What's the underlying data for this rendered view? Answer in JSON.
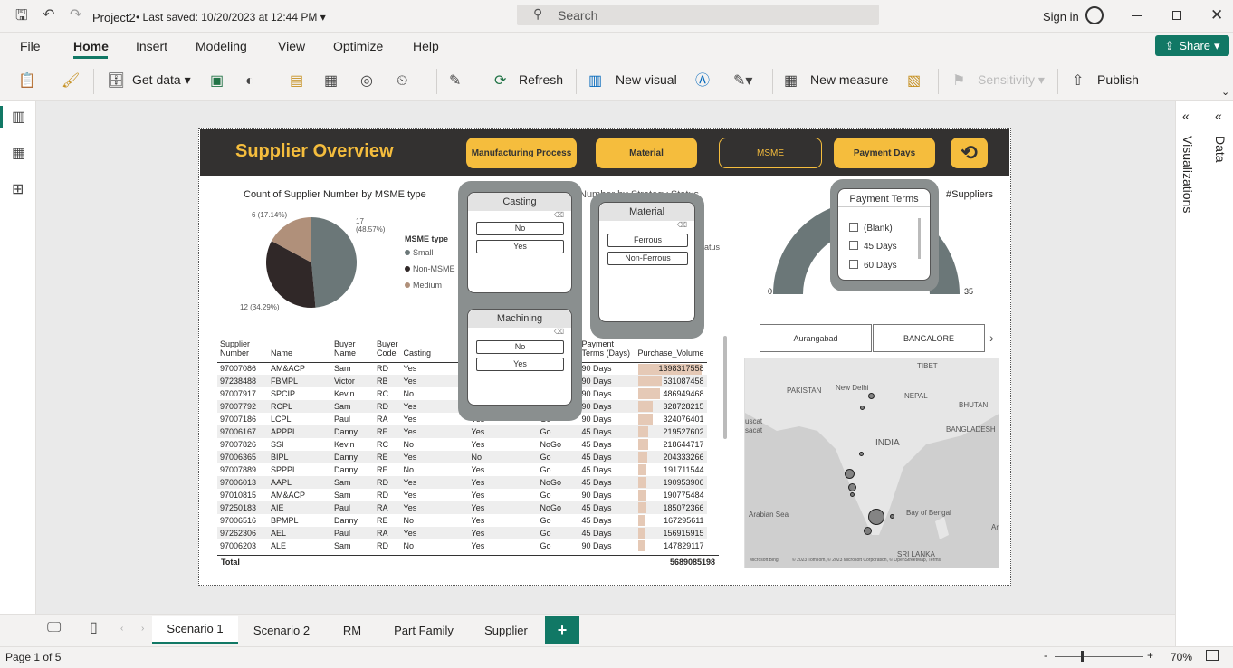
{
  "titlebar": {
    "project": "Project2",
    "saved": "Last saved: 10/20/2023 at 12:44 PM",
    "search_placeholder": "Search",
    "sign_in": "Sign in"
  },
  "menu": [
    "File",
    "Home",
    "Insert",
    "Modeling",
    "View",
    "Optimize",
    "Help"
  ],
  "share": "Share",
  "ribbon": {
    "get_data": "Get data",
    "refresh": "Refresh",
    "new_visual": "New visual",
    "new_measure": "New measure",
    "sensitivity": "Sensitivity",
    "publish": "Publish"
  },
  "report": {
    "title": "Supplier Overview",
    "buttons": [
      "Manufacturing Process",
      "Material",
      "MSME",
      "Payment Days"
    ],
    "pie": {
      "title": "Count of Supplier Number by MSME type",
      "legend_title": "MSME type",
      "legend": [
        "Small",
        "Non-MSME",
        "Medium"
      ],
      "labels": [
        "17\n(48.57%)",
        "12 (34.29%)",
        "6 (17.14%)"
      ],
      "colors": [
        "#6b7778",
        "#302828",
        "#b0907a"
      ],
      "values": [
        17,
        12,
        6
      ]
    },
    "strategy_title": "Number by Strategy Status",
    "strategy_partial": "atus",
    "casting": {
      "title": "Casting",
      "options": [
        "No",
        "Yes"
      ]
    },
    "machining": {
      "title": "Machining",
      "options": [
        "No",
        "Yes"
      ]
    },
    "material": {
      "title": "Material",
      "options": [
        "Ferrous",
        "Non-Ferrous"
      ]
    },
    "payment": {
      "title": "Payment Terms",
      "options": [
        "(Blank)",
        "45 Days",
        "60 Days"
      ]
    },
    "gauge": {
      "title": "#Suppliers",
      "min": "0",
      "max": "35",
      "value": 35
    },
    "cities": [
      "Aurangabad",
      "BANGALORE"
    ],
    "map": {
      "labels": [
        "TIBET",
        "PAKISTAN",
        "New Delhi",
        "NEPAL",
        "BHUTAN",
        "BANGLADESH",
        "INDIA",
        "Arabian Sea",
        "Bay of Bengal",
        "SRI LANKA",
        "uscat",
        "sacat",
        "Ar"
      ],
      "attribution": "Microsoft Bing",
      "copyright": "© 2023 TomTom, © 2023 Microsoft Corporation, © OpenStreetMap, Terms"
    },
    "table": {
      "headers": [
        "Supplier Number",
        "Name",
        "Buyer Name",
        "Buyer Code",
        "Casting",
        "",
        "",
        "Payment Terms (Days)",
        "Purchase_Volume"
      ],
      "rows": [
        [
          "97007086",
          "AM&ACP",
          "Sam",
          "RD",
          "Yes",
          "",
          "",
          "90 Days",
          "1398317558"
        ],
        [
          "97238488",
          "FBMPL",
          "Victor",
          "RB",
          "Yes",
          "",
          "",
          "90 Days",
          "531087458"
        ],
        [
          "97007917",
          "SPCIP",
          "Kevin",
          "RC",
          "No",
          "",
          "",
          "90 Days",
          "486949468"
        ],
        [
          "97007792",
          "RCPL",
          "Sam",
          "RD",
          "Yes",
          "",
          "",
          "90 Days",
          "328728215"
        ],
        [
          "97007186",
          "LCPL",
          "Paul",
          "RA",
          "Yes",
          "Yes",
          "Go",
          "90 Days",
          "324076401"
        ],
        [
          "97006167",
          "APPPL",
          "Danny",
          "RE",
          "Yes",
          "Yes",
          "Go",
          "45 Days",
          "219527602"
        ],
        [
          "97007826",
          "SSI",
          "Kevin",
          "RC",
          "No",
          "Yes",
          "NoGo",
          "45 Days",
          "218644717"
        ],
        [
          "97006365",
          "BIPL",
          "Danny",
          "RE",
          "Yes",
          "No",
          "Go",
          "45 Days",
          "204333266"
        ],
        [
          "97007889",
          "SPPPL",
          "Danny",
          "RE",
          "No",
          "Yes",
          "Go",
          "45 Days",
          "191711544"
        ],
        [
          "97006013",
          "AAPL",
          "Sam",
          "RD",
          "Yes",
          "Yes",
          "NoGo",
          "45 Days",
          "190953906"
        ],
        [
          "97010815",
          "AM&ACP",
          "Sam",
          "RD",
          "Yes",
          "Yes",
          "Go",
          "90 Days",
          "190775484"
        ],
        [
          "97250183",
          "AIE",
          "Paul",
          "RA",
          "Yes",
          "Yes",
          "NoGo",
          "45 Days",
          "185072366"
        ],
        [
          "97006516",
          "BPMPL",
          "Danny",
          "RE",
          "No",
          "Yes",
          "Go",
          "45 Days",
          "167295611"
        ],
        [
          "97262306",
          "AEL",
          "Paul",
          "RA",
          "Yes",
          "Yes",
          "Go",
          "45 Days",
          "156915915"
        ],
        [
          "97006203",
          "ALE",
          "Sam",
          "RD",
          "No",
          "Yes",
          "Go",
          "90 Days",
          "147829117"
        ]
      ],
      "bar_fractions": [
        1,
        0.38,
        0.35,
        0.24,
        0.23,
        0.16,
        0.16,
        0.15,
        0.14,
        0.14,
        0.14,
        0.13,
        0.12,
        0.11,
        0.11
      ],
      "total_label": "Total",
      "total_value": "5689085198"
    }
  },
  "right_panel": {
    "visualizations": "Visualizations",
    "data": "Data"
  },
  "tabs": [
    "Scenario 1",
    "Scenario 2",
    "RM",
    "Part Family",
    "Supplier"
  ],
  "add_tab": "+",
  "status": {
    "page": "Page 1 of 5",
    "zoom": "70%",
    "minus": "-",
    "plus": "+"
  },
  "colors": {
    "accent": "#f5bd3d",
    "banner": "#333130",
    "share": "#117865",
    "active_tab": "#117865"
  }
}
